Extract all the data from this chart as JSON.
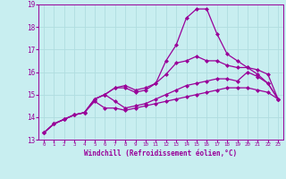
{
  "xlabel": "Windchill (Refroidissement éolien,°C)",
  "bg_color": "#c8eef0",
  "grid_color": "#b0dde0",
  "line_color": "#990099",
  "marker": "D",
  "markersize": 2.0,
  "linewidth": 0.9,
  "ylim": [
    13,
    19
  ],
  "xlim": [
    -0.5,
    23.5
  ],
  "yticks": [
    13,
    14,
    15,
    16,
    17,
    18,
    19
  ],
  "xticks": [
    0,
    1,
    2,
    3,
    4,
    5,
    6,
    7,
    8,
    9,
    10,
    11,
    12,
    13,
    14,
    15,
    16,
    17,
    18,
    19,
    20,
    21,
    22,
    23
  ],
  "series": [
    [
      13.3,
      13.7,
      13.9,
      14.1,
      14.2,
      14.8,
      15.0,
      15.3,
      15.4,
      15.2,
      15.3,
      15.5,
      15.9,
      16.4,
      16.5,
      16.7,
      16.5,
      16.5,
      16.3,
      16.2,
      16.2,
      16.1,
      15.9,
      14.8
    ],
    [
      13.3,
      13.7,
      13.9,
      14.1,
      14.2,
      14.8,
      15.0,
      14.7,
      14.4,
      14.5,
      14.6,
      14.8,
      15.0,
      15.2,
      15.4,
      15.5,
      15.6,
      15.7,
      15.7,
      15.6,
      16.0,
      15.8,
      15.5,
      14.8
    ],
    [
      13.3,
      13.7,
      13.9,
      14.1,
      14.2,
      14.7,
      14.4,
      14.4,
      14.3,
      14.4,
      14.5,
      14.6,
      14.7,
      14.8,
      14.9,
      15.0,
      15.1,
      15.2,
      15.3,
      15.3,
      15.3,
      15.2,
      15.1,
      14.8
    ],
    [
      13.3,
      13.7,
      13.9,
      14.1,
      14.2,
      14.8,
      15.0,
      15.3,
      15.3,
      15.1,
      15.2,
      15.5,
      16.5,
      17.2,
      18.4,
      18.8,
      18.8,
      17.7,
      16.8,
      16.5,
      16.2,
      15.9,
      15.5,
      14.8
    ]
  ]
}
